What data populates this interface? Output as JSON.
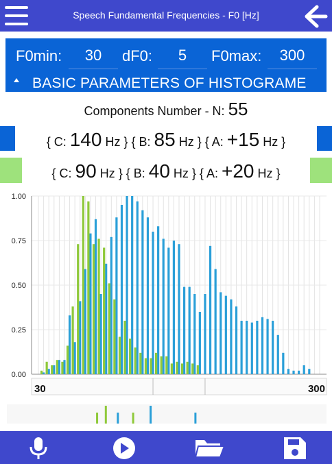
{
  "app": {
    "title": "Speech Fundamental Frequencies - F0 [Hz]",
    "colors": {
      "bar": "#3f48cc",
      "params": "#0a64d6",
      "seriesBlue": "#2a9fd8",
      "seriesGreen": "#8fc93a",
      "swatchBlue": "#0a64d6",
      "swatchGreen": "#9ee27c"
    }
  },
  "toolbar": {
    "menu_icon": "hamburger-menu-icon",
    "back_icon": "arrow-left-icon"
  },
  "params": {
    "f0min_label": "F0min:",
    "f0min_value": "30",
    "df0_label": "dF0:",
    "df0_value": "5",
    "f0max_label": "F0max:",
    "f0max_value": "300",
    "section_label": "BASIC PARAMETERS OF HISTOGRAME"
  },
  "components": {
    "label": "Components Number - N:",
    "value": "55"
  },
  "formula_blue": {
    "c_open": "{ C:",
    "c_value": "140",
    "c_unit": "Hz } { B:",
    "b_value": "85",
    "b_unit": "Hz } { A:",
    "a_value": "+15",
    "a_unit": "Hz }"
  },
  "formula_green": {
    "c_open": "{ C:",
    "c_value": "90",
    "c_unit": "Hz } { B:",
    "b_value": "40",
    "b_unit": "Hz } { A:",
    "a_value": "+20",
    "a_unit": "Hz }"
  },
  "chart_data": {
    "type": "bar",
    "xlim": [
      30,
      300
    ],
    "ylim": [
      0,
      1
    ],
    "yticks": [
      "1.00",
      "0.75",
      "0.50",
      "0.25",
      "0.00"
    ],
    "xtick_labels": [
      "30",
      "300"
    ],
    "grid": true,
    "series": [
      {
        "color": "#2a9fd8",
        "x": [
          35,
          40,
          45,
          50,
          55,
          60,
          65,
          70,
          75,
          80,
          85,
          90,
          95,
          100,
          105,
          110,
          115,
          120,
          125,
          130,
          135,
          140,
          145,
          150,
          155,
          160,
          165,
          170,
          175,
          180,
          185,
          190,
          195,
          200,
          205,
          210,
          215,
          220,
          225,
          230,
          235,
          240,
          245,
          250,
          255,
          260,
          265,
          270,
          275,
          280,
          285,
          290
        ],
        "values": [
          0.01,
          0.03,
          0.05,
          0.08,
          0.08,
          0.33,
          0.18,
          0.41,
          0.59,
          0.79,
          0.87,
          0.45,
          0.62,
          0.77,
          0.88,
          0.95,
          1.0,
          1.0,
          0.97,
          0.92,
          0.88,
          0.8,
          0.83,
          0.76,
          0.71,
          0.75,
          0.73,
          0.49,
          0.49,
          0.45,
          0.35,
          0.45,
          0.72,
          0.59,
          0.46,
          0.44,
          0.42,
          0.38,
          0.3,
          0.3,
          0.29,
          0.3,
          0.32,
          0.31,
          0.3,
          0.22,
          0.12,
          0.03,
          0.02,
          0.02,
          0.05,
          0.03
        ]
      },
      {
        "color": "#8fc93a",
        "x": [
          33,
          38,
          43,
          48,
          53,
          58,
          63,
          68,
          73,
          78,
          83,
          88,
          93,
          98,
          103,
          108,
          113,
          118,
          123,
          128,
          133,
          138,
          143,
          148,
          153,
          158,
          163,
          168,
          173,
          178,
          183
        ],
        "values": [
          0.02,
          0.07,
          0.05,
          0.08,
          0.07,
          0.16,
          0.38,
          0.73,
          1.0,
          0.97,
          0.73,
          0.76,
          0.71,
          0.51,
          0.42,
          0.21,
          0.3,
          0.2,
          0.15,
          0.12,
          0.09,
          0.09,
          0.12,
          0.1,
          0.1,
          0.06,
          0.07,
          0.06,
          0.07,
          0.06,
          0.05
        ]
      }
    ],
    "markers": [
      {
        "color": "#8fc93a",
        "x": 90
      },
      {
        "color": "#8fc93a",
        "x": 98
      },
      {
        "color": "#2a9fd8",
        "x": 109
      },
      {
        "color": "#8fc93a",
        "x": 123
      },
      {
        "color": "#2a9fd8",
        "x": 139
      },
      {
        "color": "#2a9fd8",
        "x": 180
      }
    ]
  },
  "bottombar": {
    "mic_icon": "microphone-icon",
    "play_icon": "play-icon",
    "folder_icon": "folder-open-icon",
    "save_icon": "save-icon"
  }
}
